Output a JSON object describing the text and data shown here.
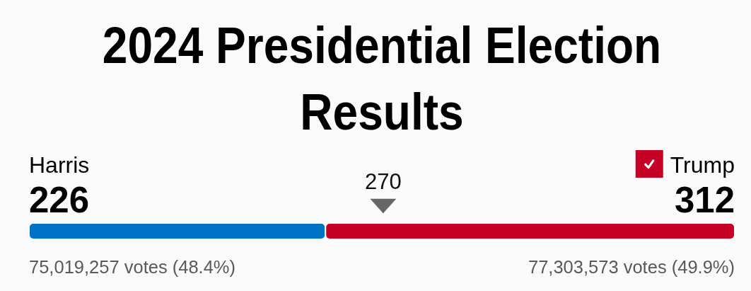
{
  "chart_data": {
    "type": "bar",
    "title": "2024 Presidential Election Results",
    "orientation": "horizontal",
    "stacked": true,
    "categories": [
      null
    ],
    "series": [
      {
        "name": "Harris",
        "color": "#0072c6",
        "values": [
          226
        ]
      },
      {
        "name": "Trump",
        "color": "#c70025",
        "values": [
          312
        ]
      }
    ],
    "data_labels": true,
    "tick_labels": false,
    "ref_lines": [
      {
        "axis": "x",
        "value": 270,
        "label": "270",
        "color": "#666666"
      }
    ],
    "annotations": [
      "75,019,257 votes (48.4%)",
      "77,303,573 votes (49.9%)"
    ]
  }
}
